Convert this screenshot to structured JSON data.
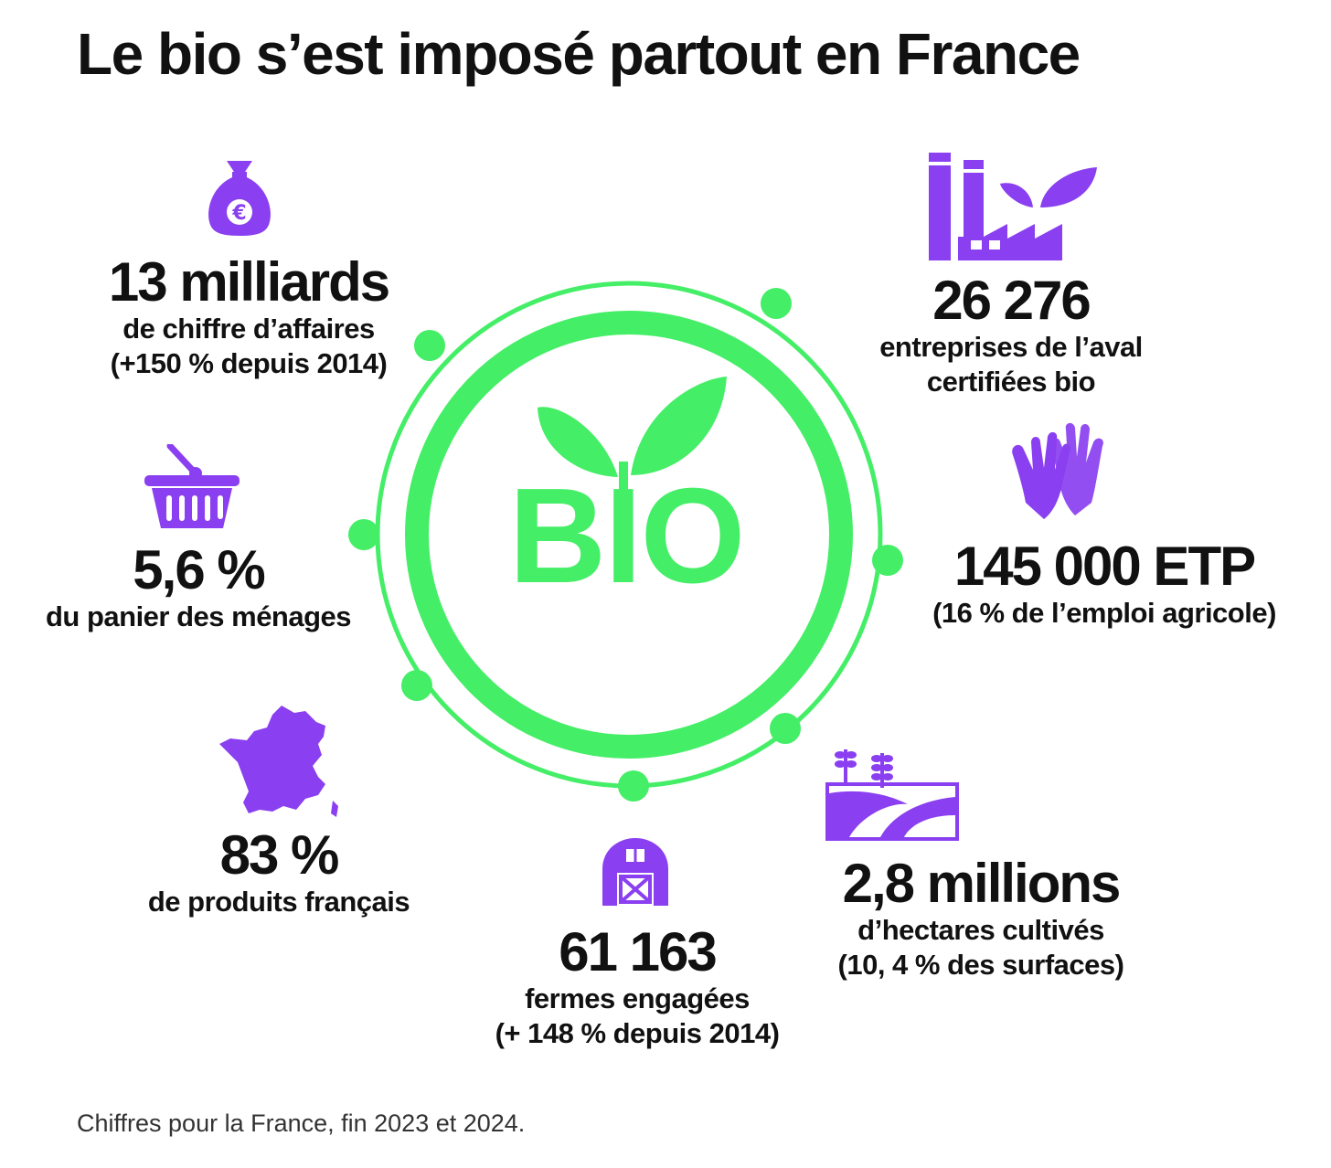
{
  "title": "Le bio s’est imposé partout en France",
  "center_label": "BIO",
  "footnote": "Chiffres pour la France, fin 2023 et 2024.",
  "colors": {
    "accent_purple": "#8a3ff0",
    "accent_green": "#44ee66",
    "text": "#111111"
  },
  "stats": [
    {
      "id": "chiffre-affaires",
      "icon": "money-bag-euro-icon",
      "value": "13 milliards",
      "lines": [
        "de chiffre d’affaires",
        "(+150 % depuis 2014)"
      ]
    },
    {
      "id": "entreprises",
      "icon": "factory-leaf-icon",
      "value": "26 276",
      "lines": [
        "entreprises de l’aval",
        "certifiées bio"
      ]
    },
    {
      "id": "panier",
      "icon": "shopping-basket-icon",
      "value": "5,6 %",
      "lines": [
        "du panier des ménages"
      ]
    },
    {
      "id": "emploi",
      "icon": "gloves-icon",
      "value": "145 000 ETP",
      "lines": [
        "(16 % de l’emploi agricole)"
      ]
    },
    {
      "id": "produits",
      "icon": "france-map-icon",
      "value": "83 %",
      "lines": [
        "de produits français"
      ]
    },
    {
      "id": "fermes",
      "icon": "barn-icon",
      "value": "61 163",
      "lines": [
        "fermes engagées",
        "(+ 148 % depuis 2014)"
      ]
    },
    {
      "id": "hectares",
      "icon": "fields-icon",
      "value": "2,8 millions",
      "lines": [
        "d’hectares cultivés",
        "(10, 4 % des surfaces)"
      ]
    }
  ]
}
